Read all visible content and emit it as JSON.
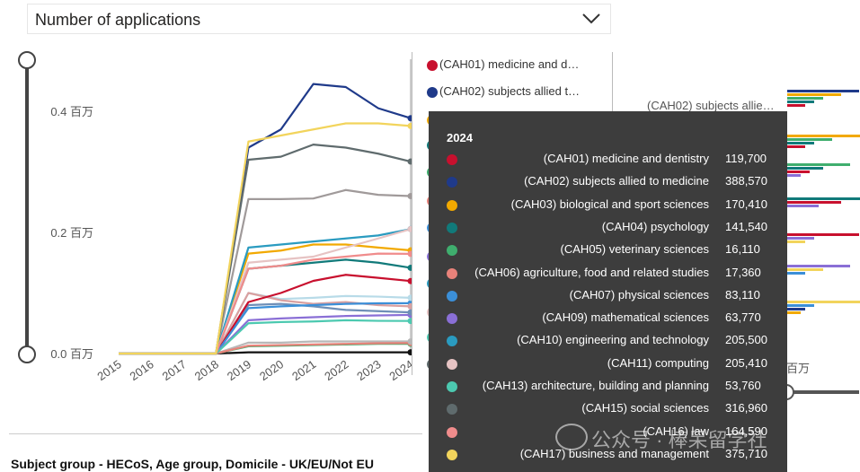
{
  "filter": {
    "label": "Number of applications"
  },
  "chart_data": {
    "type": "line",
    "x": [
      "2015",
      "2016",
      "2017",
      "2018",
      "2019",
      "2020",
      "2021",
      "2022",
      "2023",
      "2024"
    ],
    "ylim": [
      0,
      0.48
    ],
    "yticks": [
      0.0,
      0.2,
      0.4
    ],
    "ytick_labels": [
      "0.0 百万",
      "0.2 百万",
      "0.4 百万"
    ],
    "highlight_x": "2024",
    "series": [
      {
        "name": "(CAH01) medicine and dentistry",
        "color": "#c8102e",
        "values": [
          0,
          0,
          0,
          0,
          0.085,
          0.1,
          0.12,
          0.13,
          0.125,
          0.1197
        ]
      },
      {
        "name": "(CAH02) subjects allied to medicine",
        "color": "#1f3a8a",
        "values": [
          0,
          0,
          0,
          0,
          0.34,
          0.37,
          0.445,
          0.44,
          0.405,
          0.38857
        ]
      },
      {
        "name": "(CAH03) biological and sport sciences",
        "color": "#f2a900",
        "values": [
          0,
          0,
          0,
          0,
          0.165,
          0.17,
          0.18,
          0.18,
          0.175,
          0.17041
        ]
      },
      {
        "name": "(CAH04) psychology",
        "color": "#117a7a",
        "values": [
          0,
          0,
          0,
          0,
          0.14,
          0.145,
          0.15,
          0.155,
          0.15,
          0.14154
        ]
      },
      {
        "name": "(CAH05) veterinary sciences",
        "color": "#3fae6e",
        "values": [
          0,
          0,
          0,
          0,
          0.012,
          0.013,
          0.014,
          0.015,
          0.016,
          0.01611
        ]
      },
      {
        "name": "(CAH06) agriculture, food and related studies",
        "color": "#e8827a",
        "values": [
          0,
          0,
          0,
          0,
          0.013,
          0.014,
          0.015,
          0.016,
          0.017,
          0.01736
        ]
      },
      {
        "name": "(CAH07) physical sciences",
        "color": "#3b8fd8",
        "values": [
          0,
          0,
          0,
          0,
          0.075,
          0.078,
          0.08,
          0.082,
          0.083,
          0.08311
        ]
      },
      {
        "name": "(CAH09) mathematical sciences",
        "color": "#8a6fd6",
        "values": [
          0,
          0,
          0,
          0,
          0.055,
          0.058,
          0.06,
          0.062,
          0.063,
          0.06377
        ]
      },
      {
        "name": "(CAH10) engineering and technology",
        "color": "#2a9bc0",
        "values": [
          0,
          0,
          0,
          0,
          0.175,
          0.18,
          0.185,
          0.19,
          0.195,
          0.2055
        ]
      },
      {
        "name": "(CAH11) computing",
        "color": "#e6c3c3",
        "values": [
          0,
          0,
          0,
          0,
          0.15,
          0.155,
          0.16,
          0.175,
          0.19,
          0.20541
        ]
      },
      {
        "name": "(CAH13) architecture, building and planning",
        "color": "#4cc9b0",
        "values": [
          0,
          0,
          0,
          0,
          0.05,
          0.052,
          0.053,
          0.055,
          0.054,
          0.05376
        ]
      },
      {
        "name": "(CAH15) social sciences",
        "color": "#5f6b6d",
        "values": [
          0,
          0,
          0,
          0,
          0.32,
          0.325,
          0.345,
          0.34,
          0.33,
          0.31696
        ]
      },
      {
        "name": "(CAH16) law",
        "color": "#f08c8c",
        "values": [
          0,
          0,
          0,
          0,
          0.14,
          0.145,
          0.155,
          0.16,
          0.165,
          0.16459
        ]
      },
      {
        "name": "(CAH17) business and management",
        "color": "#f2d45c",
        "values": [
          0,
          0,
          0,
          0,
          0.35,
          0.36,
          0.37,
          0.38,
          0.38,
          0.37571
        ]
      }
    ],
    "extra_lines": [
      {
        "color": "#a09a9a",
        "values": [
          0,
          0,
          0,
          0,
          0.255,
          0.255,
          0.256,
          0.27,
          0.262,
          0.26
        ]
      },
      {
        "color": "#b8dbe8",
        "values": [
          0,
          0,
          0,
          0,
          0.1,
          0.09,
          0.092,
          0.095,
          0.094,
          0.092
        ]
      },
      {
        "color": "#d9a0a0",
        "values": [
          0,
          0,
          0,
          0,
          0.1,
          0.088,
          0.082,
          0.085,
          0.08,
          0.078
        ]
      },
      {
        "color": "#6f8fb7",
        "values": [
          0,
          0,
          0,
          0,
          0.08,
          0.082,
          0.078,
          0.072,
          0.07,
          0.068
        ]
      },
      {
        "color": "#111111",
        "values": [
          0,
          0,
          0,
          0,
          0.002,
          0.002,
          0.002,
          0.002,
          0.002,
          0.002
        ]
      },
      {
        "color": "#b8b8b8",
        "values": [
          0,
          0,
          0,
          0,
          0.018,
          0.018,
          0.02,
          0.02,
          0.02,
          0.02
        ]
      }
    ]
  },
  "legend": {
    "items": [
      "(CAH01) medicine and d…",
      "(CAH02) subjects allied t…"
    ]
  },
  "tooltip": {
    "year": "2024",
    "rows": [
      {
        "name": "(CAH01) medicine and dentistry",
        "value": "119,700",
        "color": "#c8102e"
      },
      {
        "name": "(CAH02) subjects allied to medicine",
        "value": "388,570",
        "color": "#1f3a8a"
      },
      {
        "name": "(CAH03) biological and sport sciences",
        "value": "170,410",
        "color": "#f2a900"
      },
      {
        "name": "(CAH04) psychology",
        "value": "141,540",
        "color": "#117a7a"
      },
      {
        "name": "(CAH05) veterinary sciences",
        "value": "16,110",
        "color": "#3fae6e"
      },
      {
        "name": "(CAH06) agriculture, food and related studies",
        "value": "17,360",
        "color": "#e8827a"
      },
      {
        "name": "(CAH07) physical sciences",
        "value": "83,110",
        "color": "#3b8fd8"
      },
      {
        "name": "(CAH09) mathematical sciences",
        "value": "63,770",
        "color": "#8a6fd6"
      },
      {
        "name": "(CAH10) engineering and technology",
        "value": "205,500",
        "color": "#2a9bc0"
      },
      {
        "name": "(CAH11) computing",
        "value": "205,410",
        "color": "#e6c3c3"
      },
      {
        "name": "(CAH13) architecture, building and planning",
        "value": "53,760",
        "color": "#4cc9b0"
      },
      {
        "name": "(CAH15) social sciences",
        "value": "316,960",
        "color": "#5f6b6d"
      },
      {
        "name": "(CAH16) law",
        "value": "164,590",
        "color": "#f08c8c"
      },
      {
        "name": "(CAH17) business and management",
        "value": "375,710",
        "color": "#f2d45c"
      }
    ]
  },
  "right_panel": {
    "label": "(CAH02) subjects allie…",
    "axis_label": "百万",
    "bar_colors": [
      "#1f3a8a",
      "#f2a900",
      "#3fae6e",
      "#117a7a",
      "#c8102e",
      "#8a6fd6",
      "#f2d45c",
      "#3b8fd8"
    ]
  },
  "bottom": {
    "title": "Subject group - HECoS, Age group, Domicile - UK/EU/Not EU"
  },
  "watermark": {
    "text": "公众号 · 棒呆留学社"
  }
}
